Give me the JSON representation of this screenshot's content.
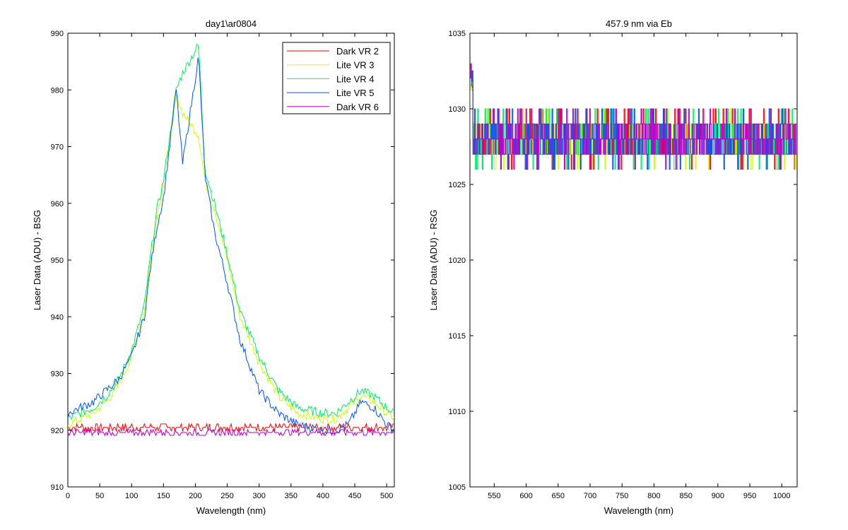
{
  "chart_data": [
    {
      "type": "line",
      "title": "day1\\ar0804",
      "xlabel": "Wavelength (nm)",
      "ylabel": "Laser Data (ADU) - BSG",
      "xlim": [
        0,
        512
      ],
      "ylim": [
        910,
        990
      ],
      "xticks": [
        0,
        50,
        100,
        150,
        200,
        250,
        300,
        350,
        400,
        450,
        500
      ],
      "yticks": [
        910,
        920,
        930,
        940,
        950,
        960,
        970,
        980,
        990
      ],
      "legend_position": "top-right",
      "series": [
        {
          "name": "Dark VR 2",
          "color": "#ff0000",
          "kind": "flat",
          "level": 920.5,
          "noise": 0.6,
          "x": [
            0,
            512
          ],
          "y": [
            920.5,
            920.5
          ]
        },
        {
          "name": "Lite VR 3",
          "color": "#ccff00",
          "kind": "peak",
          "x": [
            0,
            20,
            40,
            60,
            80,
            100,
            120,
            130,
            140,
            150,
            170,
            180,
            205,
            215,
            230,
            250,
            270,
            300,
            330,
            360,
            400,
            420,
            440,
            460,
            480,
            500,
            512
          ],
          "y": [
            921,
            922,
            923,
            925,
            928,
            933,
            941,
            950,
            958,
            964,
            979,
            976,
            972,
            964,
            959,
            950,
            940,
            932,
            926,
            923,
            922,
            922,
            924,
            926,
            925,
            923,
            922
          ]
        },
        {
          "name": "Lite VR 4",
          "color": "#00ee66",
          "kind": "peak",
          "x": [
            0,
            20,
            40,
            60,
            80,
            100,
            120,
            130,
            140,
            150,
            170,
            180,
            205,
            215,
            230,
            250,
            270,
            300,
            330,
            360,
            400,
            420,
            440,
            460,
            480,
            500,
            512
          ],
          "y": [
            922,
            923,
            924,
            926,
            929,
            934,
            942,
            951,
            959,
            964,
            980,
            983,
            988,
            966,
            960,
            951,
            941,
            933,
            927,
            924,
            923,
            923,
            925,
            927,
            926,
            924,
            923
          ]
        },
        {
          "name": "Lite VR 5",
          "color": "#0055ee",
          "kind": "peak",
          "x": [
            0,
            20,
            40,
            60,
            80,
            100,
            120,
            130,
            140,
            150,
            170,
            180,
            205,
            215,
            230,
            250,
            270,
            300,
            330,
            360,
            400,
            420,
            440,
            460,
            480,
            500,
            512
          ],
          "y": [
            923,
            924,
            925,
            927,
            929,
            933,
            940,
            949,
            956,
            961,
            980,
            967,
            986,
            965,
            955,
            946,
            936,
            927,
            923,
            921,
            920,
            920,
            921,
            925,
            924,
            921,
            920
          ]
        },
        {
          "name": "Dark VR 6",
          "color": "#bb00cc",
          "kind": "flat",
          "level": 919.6,
          "noise": 0.5,
          "x": [
            0,
            512
          ],
          "y": [
            919.6,
            919.6
          ]
        }
      ]
    },
    {
      "type": "line",
      "title": "457.9 nm via Eb",
      "xlabel": "Wavelength (nm)",
      "ylabel": "Laser Data (ADU) - RSG",
      "xlim": [
        512,
        1024
      ],
      "ylim": [
        1005,
        1035
      ],
      "xticks": [
        550,
        600,
        650,
        700,
        750,
        800,
        850,
        900,
        950,
        1000
      ],
      "yticks": [
        1005,
        1010,
        1015,
        1020,
        1025,
        1030,
        1035
      ],
      "series": [
        {
          "color": "#ff0000",
          "kind": "noise",
          "level": 1028,
          "x": [
            512,
            1024
          ],
          "y": [
            1028,
            1028
          ]
        },
        {
          "color": "#ccff00",
          "kind": "noise",
          "level": 1028,
          "x": [
            512,
            1024
          ],
          "y": [
            1028,
            1028
          ]
        },
        {
          "color": "#00ee66",
          "kind": "noise",
          "level": 1028,
          "x": [
            512,
            1024
          ],
          "y": [
            1028,
            1028
          ]
        },
        {
          "color": "#0055ee",
          "kind": "noise",
          "level": 1028,
          "x": [
            512,
            1024
          ],
          "y": [
            1028,
            1028
          ]
        },
        {
          "color": "#bb00cc",
          "kind": "noise",
          "level": 1028,
          "x": [
            512,
            1024
          ],
          "y": [
            1028,
            1028
          ]
        }
      ]
    }
  ]
}
